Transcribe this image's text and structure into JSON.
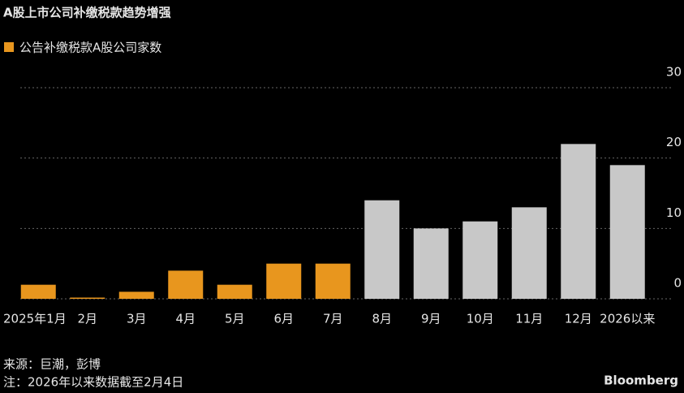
{
  "chart_data": {
    "type": "bar",
    "title": "A股上市公司补缴税款趋势增强",
    "series": [
      {
        "name": "公告补缴税款A股公司家数",
        "color": "#e8961e",
        "values": [
          2,
          0,
          1,
          4,
          2,
          5,
          5,
          14,
          10,
          11,
          13,
          22,
          19
        ],
        "colors": [
          "#e8961e",
          "#e8961e",
          "#e8961e",
          "#e8961e",
          "#e8961e",
          "#e8961e",
          "#e8961e",
          "#c8c8c8",
          "#c8c8c8",
          "#c8c8c8",
          "#c8c8c8",
          "#c8c8c8",
          "#c8c8c8"
        ]
      }
    ],
    "categories": [
      "2025年1月",
      "2月",
      "3月",
      "4月",
      "5月",
      "6月",
      "7月",
      "8月",
      "9月",
      "10月",
      "11月",
      "12月",
      "2026以来"
    ],
    "ylim": [
      0,
      30
    ],
    "yticks": [
      0,
      10,
      20,
      30
    ],
    "grid": true,
    "source": "来源：巨潮，彭博",
    "note": "注：2026年以来数据截至2月4日",
    "brand": "Bloomberg"
  }
}
